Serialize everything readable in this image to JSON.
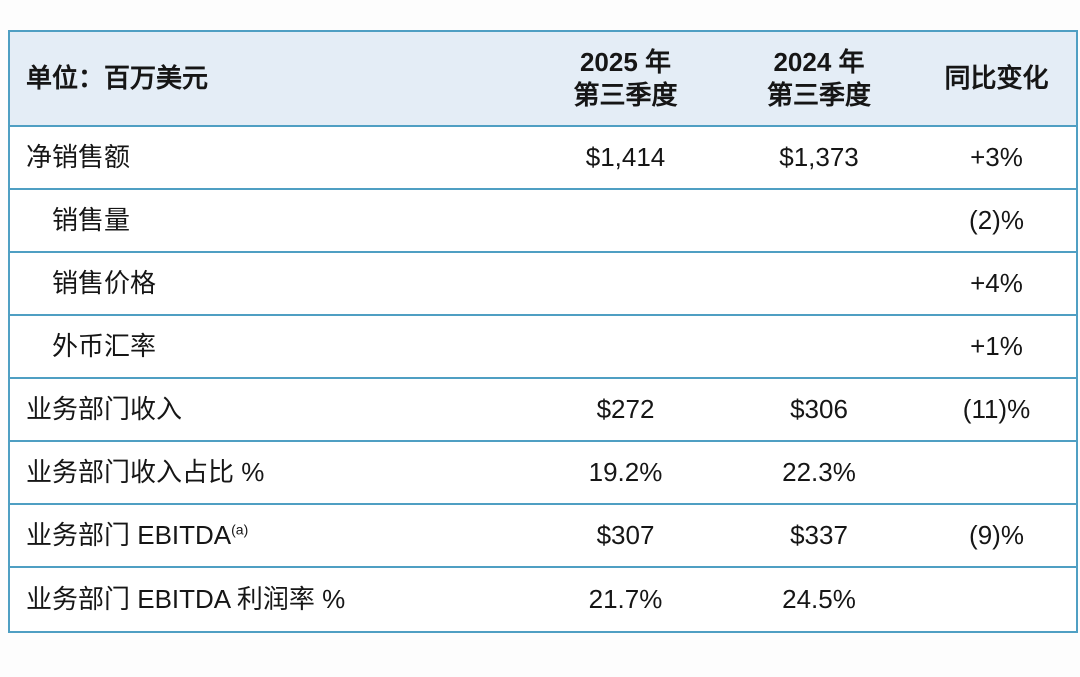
{
  "theme": {
    "border_color": "#4f9fc3",
    "header_bg": "#e4edf6",
    "text_color": "#161616",
    "page_bg": "#fdfdfd"
  },
  "table": {
    "unit_header": "单位：百万美元",
    "column_headers": [
      {
        "line1": "2025 年",
        "line2": "第三季度"
      },
      {
        "line1": "2024 年",
        "line2": "第三季度"
      },
      {
        "line1": "同比变化",
        "line2": ""
      }
    ],
    "rows": [
      {
        "label": "净销售额",
        "q3_2025": "$1,414",
        "q3_2024": "$1,373",
        "yoy": "+3%"
      },
      {
        "label": "销售量",
        "q3_2025": "",
        "q3_2024": "",
        "yoy": "(2)%"
      },
      {
        "label": "销售价格",
        "q3_2025": "",
        "q3_2024": "",
        "yoy": "+4%"
      },
      {
        "label": "外币汇率",
        "q3_2025": "",
        "q3_2024": "",
        "yoy": "+1%"
      },
      {
        "label": "业务部门收入",
        "q3_2025": "$272",
        "q3_2024": "$306",
        "yoy": "(11)%"
      },
      {
        "label": "业务部门收入占比 %",
        "q3_2025": "19.2%",
        "q3_2024": "22.3%",
        "yoy": ""
      },
      {
        "label": "业务部门 EBITDA",
        "sup": "(a)",
        "q3_2025": "$307",
        "q3_2024": "$337",
        "yoy": "(9)%"
      },
      {
        "label": "业务部门 EBITDA 利润率 %",
        "q3_2025": "21.7%",
        "q3_2024": "24.5%",
        "yoy": ""
      }
    ]
  }
}
